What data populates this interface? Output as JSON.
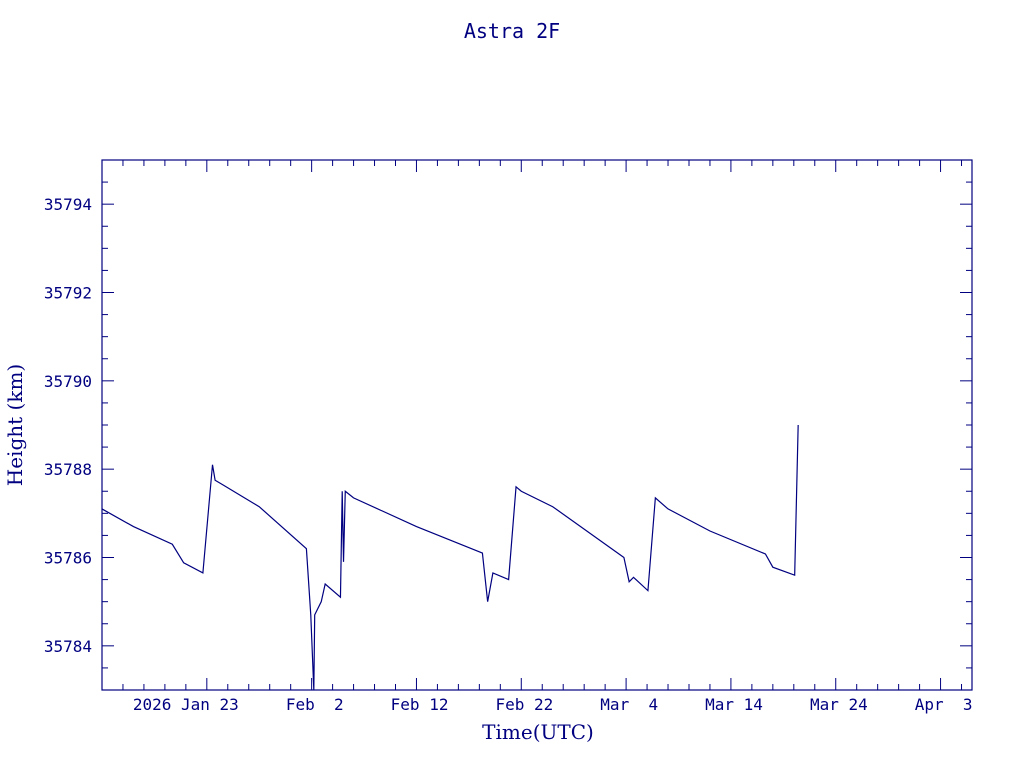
{
  "chart_data": {
    "type": "line",
    "title": "Astra 2F",
    "xlabel": "Time(UTC)",
    "ylabel": "Height (km)",
    "xlim": [
      "2026-01-13",
      "2026-04-06"
    ],
    "ylim": [
      35783.0,
      35795.0
    ],
    "grid": false,
    "x_tick_labels": [
      {
        "date": "2026-01-23",
        "label": "2026 Jan 23"
      },
      {
        "date": "2026-02-02",
        "label": "Feb  2"
      },
      {
        "date": "2026-02-12",
        "label": "Feb 12"
      },
      {
        "date": "2026-02-22",
        "label": "Feb 22"
      },
      {
        "date": "2026-03-04",
        "label": "Mar  4"
      },
      {
        "date": "2026-03-14",
        "label": "Mar 14"
      },
      {
        "date": "2026-03-24",
        "label": "Mar 24"
      },
      {
        "date": "2026-04-03",
        "label": "Apr  3"
      }
    ],
    "y_ticks": [
      35784,
      35786,
      35788,
      35790,
      35792,
      35794
    ],
    "series": [
      {
        "color": "#000080",
        "points": [
          [
            "2026-01-13 00:00",
            35787.1
          ],
          [
            "2026-01-16 00:00",
            35786.7
          ],
          [
            "2026-01-19 17:00",
            35786.3
          ],
          [
            "2026-01-20 19:00",
            35785.88
          ],
          [
            "2026-01-22 15:00",
            35785.65
          ],
          [
            "2026-01-23 13:00",
            35788.1
          ],
          [
            "2026-01-23 19:00",
            35787.75
          ],
          [
            "2026-01-24 12:00",
            35787.65
          ],
          [
            "2026-01-28 00:00",
            35787.15
          ],
          [
            "2026-02-01 12:00",
            35786.2
          ],
          [
            "2026-02-01 22:00",
            35784.7
          ],
          [
            "2026-02-02 05:00",
            35783.0
          ],
          [
            "2026-02-02 07:00",
            35784.7
          ],
          [
            "2026-02-02 22:00",
            35785.0
          ],
          [
            "2026-02-03 07:00",
            35785.4
          ],
          [
            "2026-02-04 18:00",
            35785.1
          ],
          [
            "2026-02-04 22:00",
            35787.5
          ],
          [
            "2026-02-05 01:00",
            35785.9
          ],
          [
            "2026-02-05 05:00",
            35787.5
          ],
          [
            "2026-02-06 00:00",
            35787.35
          ],
          [
            "2026-02-12 00:00",
            35786.7
          ],
          [
            "2026-02-18 07:00",
            35786.1
          ],
          [
            "2026-02-18 19:00",
            35785.0
          ],
          [
            "2026-02-19 07:00",
            35785.65
          ],
          [
            "2026-02-20 19:00",
            35785.5
          ],
          [
            "2026-02-21 12:00",
            35787.6
          ],
          [
            "2026-02-22 00:00",
            35787.5
          ],
          [
            "2026-02-25 00:00",
            35787.15
          ],
          [
            "2026-03-03 19:00",
            35786.0
          ],
          [
            "2026-03-04 07:00",
            35785.45
          ],
          [
            "2026-03-04 17:00",
            35785.55
          ],
          [
            "2026-03-06 02:00",
            35785.25
          ],
          [
            "2026-03-06 19:00",
            35787.35
          ],
          [
            "2026-03-08 00:00",
            35787.1
          ],
          [
            "2026-03-12 00:00",
            35786.6
          ],
          [
            "2026-03-17 07:00",
            35786.08
          ],
          [
            "2026-03-18 00:00",
            35785.78
          ],
          [
            "2026-03-20 02:00",
            35785.6
          ],
          [
            "2026-03-20 10:00",
            35789.0
          ]
        ]
      }
    ]
  }
}
